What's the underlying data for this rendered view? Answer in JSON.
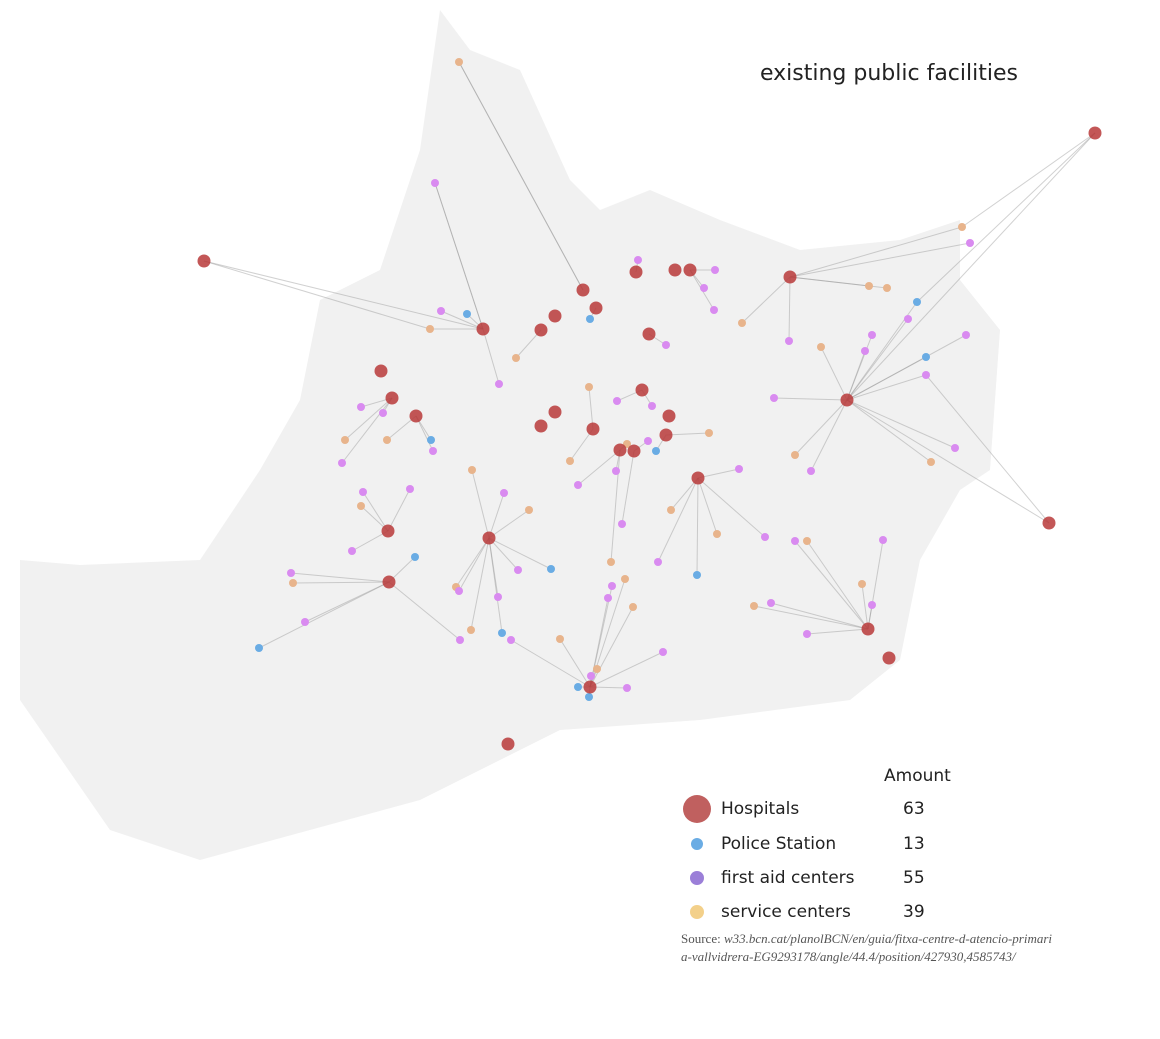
{
  "title": "existing public facilities",
  "legend": {
    "title": "Amount",
    "items": [
      {
        "name": "Hospitals",
        "amount": 63,
        "color": "#c0605f"
      },
      {
        "name": "Police Station",
        "amount": 13,
        "color": "#6aace4"
      },
      {
        "name": "first aid centers",
        "amount": 55,
        "color": "#9b7fd8"
      },
      {
        "name": "service centers",
        "amount": 39,
        "color": "#f3d08a"
      }
    ]
  },
  "source": {
    "label": "Source:",
    "text": "w33.bcn.cat/planolBCN/en/guia/fitxa-centre-d-atencio-primaria-vallvidrera-EG9293178/angle/44.4/position/427930,4585743/"
  }
}
